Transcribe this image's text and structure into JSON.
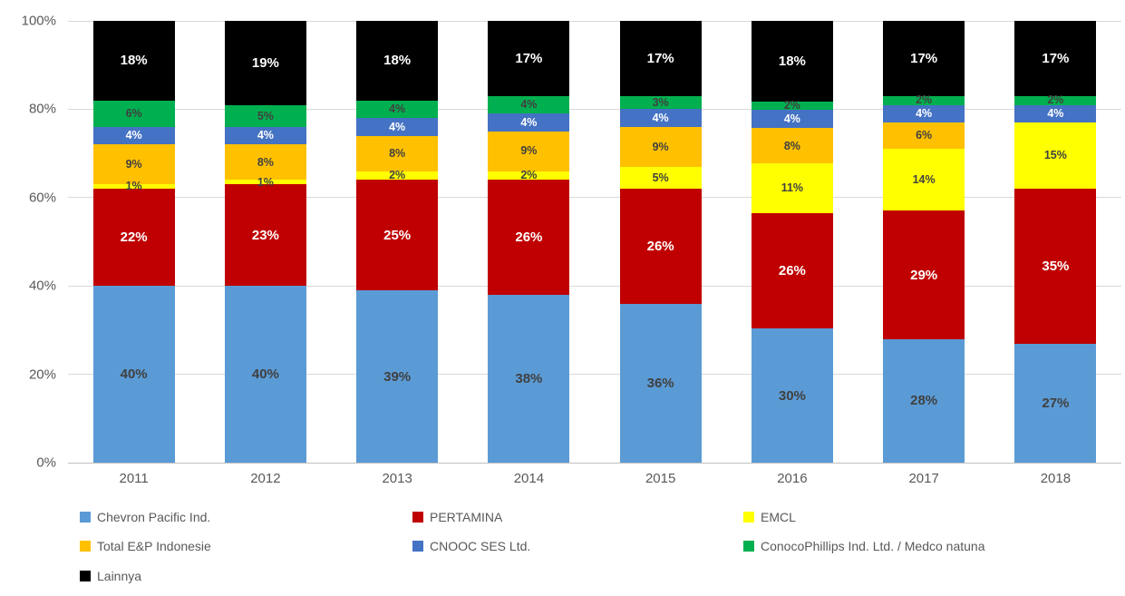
{
  "chart_data": {
    "type": "bar",
    "stacked": true,
    "percent_stacked": true,
    "title": "",
    "xlabel": "",
    "ylabel": "",
    "value_suffix": "%",
    "categories": [
      "2011",
      "2012",
      "2013",
      "2014",
      "2015",
      "2016",
      "2017",
      "2018"
    ],
    "series": [
      {
        "name": "Chevron Pacific Ind.",
        "color": "#5B9BD5",
        "label_color": "#404040",
        "values": [
          40,
          40,
          39,
          38,
          36,
          30,
          28,
          27
        ]
      },
      {
        "name": "PERTAMINA",
        "color": "#C00000",
        "label_color": "#FFFFFF",
        "values": [
          22,
          23,
          25,
          26,
          26,
          26,
          29,
          35
        ]
      },
      {
        "name": "EMCL",
        "color": "#FFFF00",
        "label_color": "#404040",
        "values": [
          1,
          1,
          2,
          2,
          5,
          11,
          14,
          15
        ]
      },
      {
        "name": "Total E&P Indonesie",
        "color": "#FFC000",
        "label_color": "#404040",
        "values": [
          9,
          8,
          8,
          9,
          9,
          8,
          6,
          0
        ]
      },
      {
        "name": "CNOOC SES Ltd.",
        "color": "#4472C4",
        "label_color": "#FFFFFF",
        "values": [
          4,
          4,
          4,
          4,
          4,
          4,
          4,
          4
        ]
      },
      {
        "name": "ConocoPhillips Ind. Ltd. / Medco natuna",
        "color": "#00B050",
        "label_color": "#404040",
        "values": [
          6,
          5,
          4,
          4,
          3,
          2,
          2,
          2
        ]
      },
      {
        "name": "Lainnya",
        "color": "#000000",
        "label_color": "#FFFFFF",
        "values": [
          18,
          19,
          18,
          17,
          17,
          18,
          17,
          17
        ]
      }
    ],
    "y_ticks": [
      "0%",
      "20%",
      "40%",
      "60%",
      "80%",
      "100%"
    ],
    "ylim": [
      0,
      100
    ],
    "grid": true,
    "gridline_color": "#D9D9D9",
    "axis_text_color": "#595959",
    "background_color": "#FFFFFF",
    "legend_position": "bottom"
  }
}
